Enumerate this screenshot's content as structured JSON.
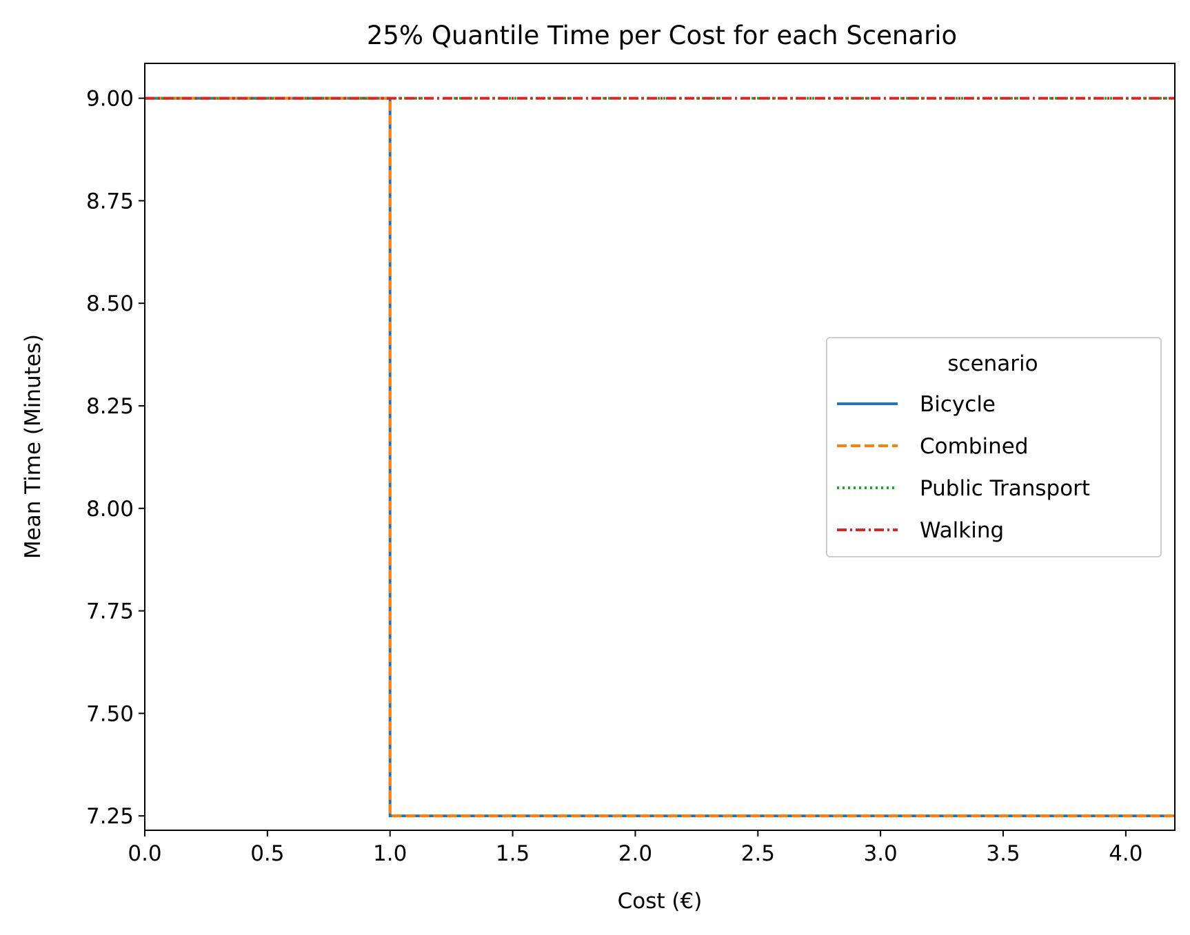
{
  "chart_data": {
    "type": "line",
    "title": "25% Quantile Time per Cost for each Scenario",
    "xlabel": "Cost (€)",
    "ylabel": "Mean Time (Minutes)",
    "xlim": [
      0,
      4.2
    ],
    "ylim": [
      7.215,
      9.085
    ],
    "xticks": [
      0.0,
      0.5,
      1.0,
      1.5,
      2.0,
      2.5,
      3.0,
      3.5,
      4.0
    ],
    "xtick_labels": [
      "0.0",
      "0.5",
      "1.0",
      "1.5",
      "2.0",
      "2.5",
      "3.0",
      "3.5",
      "4.0"
    ],
    "yticks": [
      7.25,
      7.5,
      7.75,
      8.0,
      8.25,
      8.5,
      8.75,
      9.0
    ],
    "ytick_labels": [
      "7.25",
      "7.50",
      "7.75",
      "8.00",
      "8.25",
      "8.50",
      "8.75",
      "9.00"
    ],
    "grid": false,
    "legend": {
      "title": "scenario",
      "placement": "center-right"
    },
    "series": [
      {
        "name": "Bicycle",
        "color": "#1f77b4",
        "dash": "solid",
        "drawstyle": "steps-post",
        "x": [
          0.0,
          1.0,
          4.2
        ],
        "y": [
          9.0,
          7.25,
          7.25
        ]
      },
      {
        "name": "Combined",
        "color": "#ff7f0e",
        "dash": "dashed",
        "drawstyle": "steps-post",
        "x": [
          0.0,
          1.0,
          4.2
        ],
        "y": [
          9.0,
          7.25,
          7.25
        ]
      },
      {
        "name": "Public Transport",
        "color": "#2ca02c",
        "dash": "dotted",
        "drawstyle": "steps-post",
        "x": [
          0.0,
          4.2
        ],
        "y": [
          9.0,
          9.0
        ]
      },
      {
        "name": "Walking",
        "color": "#d62728",
        "dash": "dashdot",
        "drawstyle": "steps-post",
        "x": [
          0.0,
          4.2
        ],
        "y": [
          9.0,
          9.0
        ]
      }
    ]
  }
}
